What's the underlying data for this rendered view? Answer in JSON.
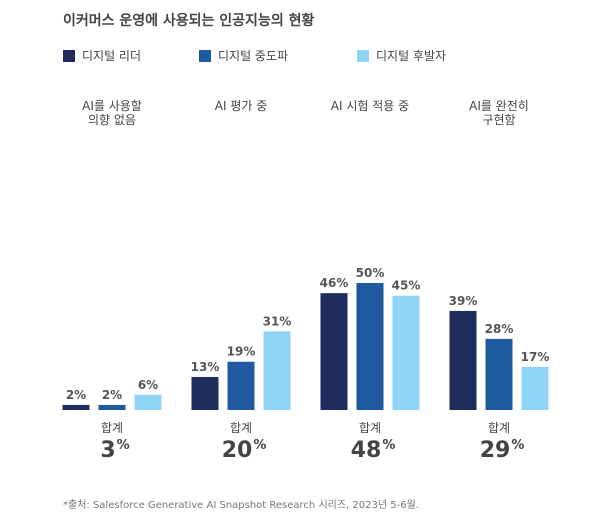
{
  "chart_data": {
    "type": "bar",
    "title": "이커머스 운영에 사용되는 인공지능의 현황",
    "categories": [
      [
        "AI를 사용할",
        "의향 없음"
      ],
      [
        "AI 평가 중"
      ],
      [
        "AI 시험 적용 중"
      ],
      [
        "AI를 완전히",
        "구현함"
      ]
    ],
    "series": [
      {
        "name": "디지털 리더",
        "color": "#1f2d5c",
        "values": [
          2,
          13,
          46,
          39
        ],
        "labels": [
          "2%",
          "13%",
          "46%",
          "39%"
        ]
      },
      {
        "name": "디지털 중도파",
        "color": "#1f5aa0",
        "values": [
          2,
          19,
          50,
          28
        ],
        "labels": [
          "2%",
          "19%",
          "50%",
          "28%"
        ]
      },
      {
        "name": "디지털 후발자",
        "color": "#8fd3f5",
        "values": [
          6,
          31,
          45,
          17
        ],
        "labels": [
          "6%",
          "31%",
          "45%",
          "17%"
        ]
      }
    ],
    "totals": {
      "word": "합계",
      "values": [
        "3",
        "20",
        "48",
        "29"
      ],
      "unit": "%"
    },
    "ylim": [
      0,
      60
    ],
    "legend": "top-left",
    "footnote": "*출처: Salesforce Generative AI Snapshot Research 시리즈, 2023년 5-6월."
  }
}
